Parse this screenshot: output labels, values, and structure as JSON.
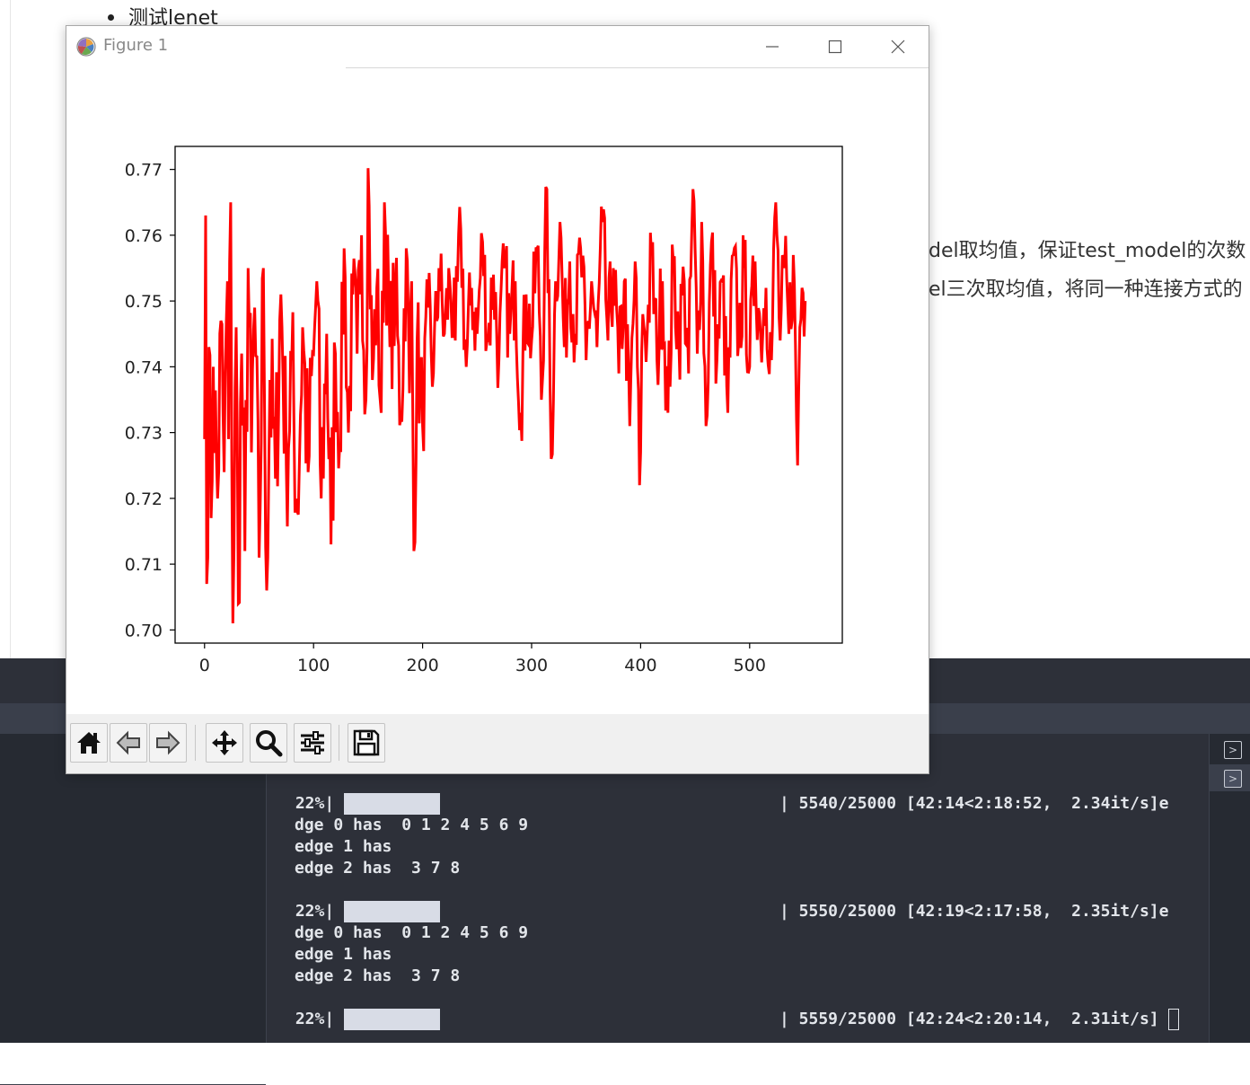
{
  "document": {
    "heading": "测试lenet",
    "line1": "del取均值，保证test_model的次数",
    "line2": "el三次取均值，将同一种连接方式的"
  },
  "window": {
    "title": "Figure 1",
    "controls": [
      "minimize",
      "maximize",
      "close"
    ]
  },
  "toolbar": {
    "buttons": [
      "home-icon",
      "back-arrow-icon",
      "forward-arrow-icon",
      "pan-icon",
      "zoom-icon",
      "configure-subplots-icon",
      "save-icon"
    ]
  },
  "chart_data": {
    "type": "line",
    "title": "",
    "xlabel": "",
    "ylabel": "",
    "xlim": [
      -27,
      585
    ],
    "ylim": [
      0.698,
      0.7735
    ],
    "xticks": [
      "0",
      "100",
      "200",
      "300",
      "400",
      "500"
    ],
    "yticks": [
      "0.70",
      "0.71",
      "0.72",
      "0.73",
      "0.74",
      "0.75",
      "0.76",
      "0.77"
    ],
    "series": [
      {
        "color": "#ff0000",
        "n_points": 552,
        "x_range": [
          0,
          551
        ],
        "y_range": [
          0.7008,
          0.7705
        ],
        "anchor_points": [
          [
            0,
            0.729
          ],
          [
            1,
            0.763
          ],
          [
            2,
            0.707
          ],
          [
            4,
            0.743
          ],
          [
            6,
            0.717
          ],
          [
            8,
            0.74
          ],
          [
            12,
            0.72
          ],
          [
            15,
            0.747
          ],
          [
            18,
            0.724
          ],
          [
            21,
            0.753
          ],
          [
            22,
            0.729
          ],
          [
            24,
            0.765
          ],
          [
            26,
            0.701
          ],
          [
            29,
            0.746
          ],
          [
            31,
            0.704
          ],
          [
            34,
            0.742
          ],
          [
            37,
            0.712
          ],
          [
            40,
            0.755
          ],
          [
            43,
            0.727
          ],
          [
            46,
            0.749
          ],
          [
            50,
            0.711
          ],
          [
            54,
            0.755
          ],
          [
            57,
            0.706
          ],
          [
            60,
            0.738
          ],
          [
            65,
            0.723
          ],
          [
            70,
            0.751
          ],
          [
            75,
            0.725
          ],
          [
            80,
            0.741
          ],
          [
            85,
            0.718
          ],
          [
            90,
            0.746
          ],
          [
            95,
            0.724
          ],
          [
            100,
            0.742
          ],
          [
            103,
            0.753
          ],
          [
            107,
            0.72
          ],
          [
            112,
            0.745
          ],
          [
            116,
            0.713
          ],
          [
            120,
            0.742
          ],
          [
            124,
            0.728
          ],
          [
            128,
            0.758
          ],
          [
            132,
            0.73
          ],
          [
            136,
            0.751
          ],
          [
            140,
            0.742
          ],
          [
            144,
            0.76
          ],
          [
            148,
            0.735
          ],
          [
            150,
            0.7702
          ],
          [
            154,
            0.738
          ],
          [
            158,
            0.752
          ],
          [
            162,
            0.733
          ],
          [
            165,
            0.765
          ],
          [
            170,
            0.743
          ],
          [
            175,
            0.751
          ],
          [
            180,
            0.732
          ],
          [
            185,
            0.758
          ],
          [
            188,
            0.736
          ],
          [
            190,
            0.753
          ],
          [
            192,
            0.712
          ],
          [
            195,
            0.744
          ],
          [
            200,
            0.731
          ],
          [
            205,
            0.749
          ],
          [
            210,
            0.739
          ],
          [
            215,
            0.755
          ],
          [
            220,
            0.745
          ],
          [
            225,
            0.753
          ],
          [
            230,
            0.744
          ],
          [
            235,
            0.761
          ],
          [
            240,
            0.74
          ],
          [
            245,
            0.752
          ],
          [
            250,
            0.745
          ],
          [
            255,
            0.759
          ],
          [
            260,
            0.744
          ],
          [
            265,
            0.754
          ],
          [
            270,
            0.741
          ],
          [
            275,
            0.755
          ],
          [
            280,
            0.745
          ],
          [
            285,
            0.753
          ],
          [
            290,
            0.733
          ],
          [
            295,
            0.751
          ],
          [
            300,
            0.744
          ],
          [
            305,
            0.758
          ],
          [
            310,
            0.738
          ],
          [
            314,
            0.767
          ],
          [
            318,
            0.726
          ],
          [
            322,
            0.753
          ],
          [
            326,
            0.762
          ],
          [
            330,
            0.743
          ],
          [
            335,
            0.756
          ],
          [
            340,
            0.745
          ],
          [
            345,
            0.758
          ],
          [
            350,
            0.741
          ],
          [
            355,
            0.753
          ],
          [
            360,
            0.743
          ],
          [
            365,
            0.762
          ],
          [
            370,
            0.744
          ],
          [
            375,
            0.755
          ],
          [
            380,
            0.739
          ],
          [
            385,
            0.753
          ],
          [
            390,
            0.731
          ],
          [
            395,
            0.756
          ],
          [
            399,
            0.722
          ],
          [
            402,
            0.748
          ],
          [
            406,
            0.745
          ],
          [
            410,
            0.757
          ],
          [
            415,
            0.741
          ],
          [
            420,
            0.753
          ],
          [
            425,
            0.733
          ],
          [
            430,
            0.756
          ],
          [
            435,
            0.744
          ],
          [
            440,
            0.753
          ],
          [
            444,
            0.739
          ],
          [
            448,
            0.767
          ],
          [
            452,
            0.742
          ],
          [
            456,
            0.762
          ],
          [
            460,
            0.731
          ],
          [
            465,
            0.759
          ],
          [
            470,
            0.741
          ],
          [
            475,
            0.753
          ],
          [
            480,
            0.733
          ],
          [
            485,
            0.757
          ],
          [
            490,
            0.744
          ],
          [
            495,
            0.755
          ],
          [
            500,
            0.74
          ],
          [
            505,
            0.756
          ],
          [
            510,
            0.745
          ],
          [
            515,
            0.752
          ],
          [
            520,
            0.741
          ],
          [
            524,
            0.765
          ],
          [
            528,
            0.744
          ],
          [
            532,
            0.755
          ],
          [
            536,
            0.745
          ],
          [
            540,
            0.757
          ],
          [
            544,
            0.725
          ],
          [
            546,
            0.746
          ],
          [
            548,
            0.752
          ],
          [
            551,
            0.75
          ]
        ]
      }
    ],
    "grid": false,
    "legend": "none"
  },
  "terminal": {
    "lines": [
      {
        "kind": "progress",
        "percent": " 22%|",
        "stats": "| 5540/25000 [42:14<2:18:52,  2.34it/s]e"
      },
      {
        "kind": "text",
        "text": "dge 0 has  0 1 2 4 5 6 9"
      },
      {
        "kind": "text",
        "text": "edge 1 has"
      },
      {
        "kind": "text",
        "text": "edge 2 has  3 7 8"
      },
      {
        "kind": "blank",
        "text": ""
      },
      {
        "kind": "progress",
        "percent": " 22%|",
        "stats": "| 5550/25000 [42:19<2:17:58,  2.35it/s]e"
      },
      {
        "kind": "text",
        "text": "dge 0 has  0 1 2 4 5 6 9"
      },
      {
        "kind": "text",
        "text": "edge 1 has"
      },
      {
        "kind": "text",
        "text": "edge 2 has  3 7 8"
      },
      {
        "kind": "blank",
        "text": ""
      },
      {
        "kind": "progress",
        "percent": " 22%|",
        "stats": "| 5559/25000 [42:24<2:20:14,  2.31it/s]"
      }
    ],
    "progress_fraction": 0.22
  },
  "colors": {
    "ide_background": "#2d3039",
    "terminal_text": "#e2e5ea",
    "plot_line": "#ff0000"
  }
}
